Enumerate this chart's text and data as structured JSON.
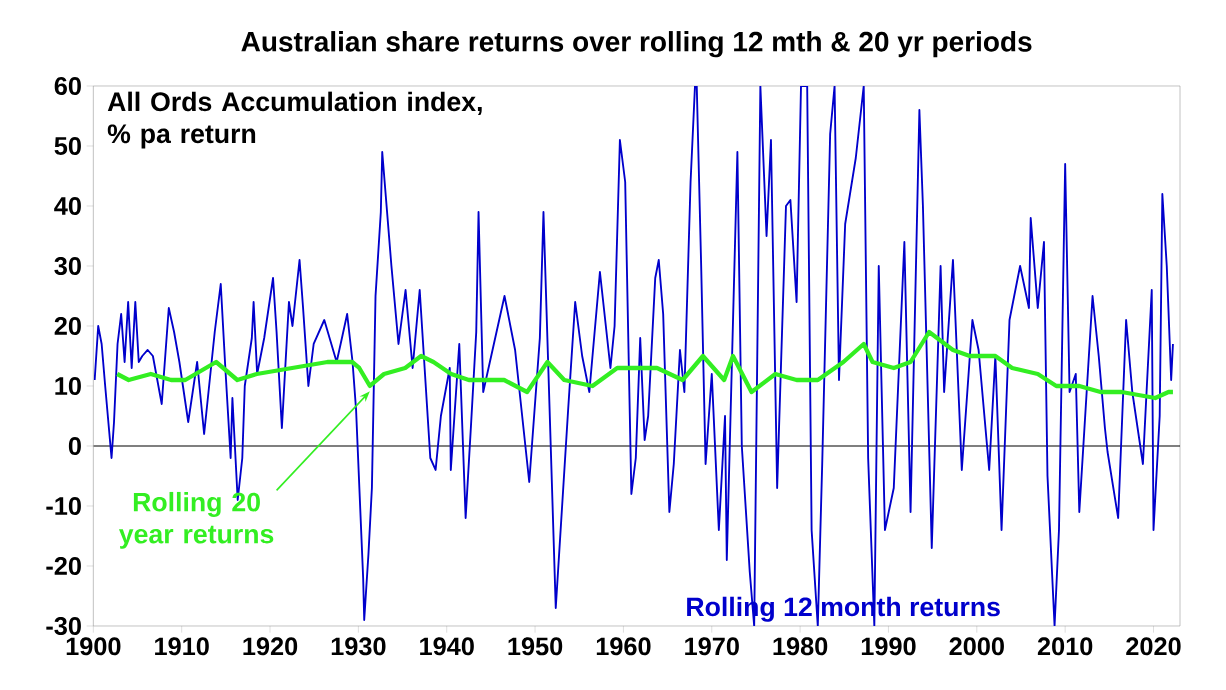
{
  "chart_data": {
    "type": "line",
    "title": "Australian share returns over rolling 12 mth & 20 yr periods",
    "annotations": [
      "All Ords Accumulation index, % pa return"
    ],
    "series": [
      {
        "name": "Rolling 12 month returns",
        "color": "#0000cc",
        "x": [
          1900.15,
          1900.55,
          1900.94,
          1901.34,
          1902.06,
          1902.34,
          1902.74,
          1903.15,
          1903.54,
          1903.94,
          1904.34,
          1904.75,
          1905.14,
          1905.54,
          1906.15,
          1906.74,
          1907.74,
          1908.54,
          1909.14,
          1909.74,
          1910.74,
          1911.75,
          1912.54,
          1913.74,
          1914.42,
          1914.94,
          1915.54,
          1915.74,
          1916.34,
          1916.86,
          1917.14,
          1917.94,
          1918.14,
          1918.54,
          1919.34,
          1920.34,
          1920.74,
          1921.34,
          1922.14,
          1922.54,
          1923.34,
          1923.74,
          1924.34,
          1924.94,
          1926.14,
          1926.94,
          1927.54,
          1928.14,
          1928.73,
          1929.34,
          1929.74,
          1930.54,
          1930.66,
          1931.14,
          1931.53,
          1931.94,
          1932.54,
          1932.7,
          1933.74,
          1934.54,
          1935.34,
          1936.14,
          1936.94,
          1937.54,
          1938.14,
          1938.74,
          1939.34,
          1940.34,
          1940.46,
          1941.42,
          1942.14,
          1942.73,
          1943.34,
          1943.6,
          1944.13,
          1946.54,
          1947.74,
          1949.34,
          1950.54,
          1950.95,
          1952.34,
          1953.74,
          1954.54,
          1955.33,
          1956.14,
          1957.34,
          1958.53,
          1959.0,
          1959.6,
          1960.2,
          1960.9,
          1961.4,
          1961.9,
          1962.4,
          1962.8,
          1963.6,
          1964.0,
          1964.5,
          1965.2,
          1965.7,
          1966.4,
          1966.9,
          1967.6,
          1968.1,
          1968.3,
          1968.8,
          1969.3,
          1970.0,
          1970.8,
          1971.5,
          1971.7,
          1972.9,
          1973.4,
          1974.3,
          1974.8,
          1975.5,
          1976.2,
          1976.7,
          1977.4,
          1978.4,
          1978.9,
          1979.6,
          1980.1,
          1980.8,
          1981.3,
          1982.0,
          1982.5,
          1983.4,
          1983.9,
          1984.4,
          1985.1,
          1986.3,
          1987.2,
          1987.7,
          1988.4,
          1988.9,
          1989.6,
          1990.6,
          1991.8,
          1992.5,
          1993.5,
          1993.9,
          1994.9,
          1995.9,
          1996.3,
          1997.3,
          1998.3,
          1999.5,
          2000.2,
          2001.4,
          2002.1,
          2002.8,
          2003.7,
          2004.9,
          2005.9,
          2006.1,
          2006.9,
          2007.6,
          2008.0,
          2008.8,
          2009.3,
          2010.0,
          2010.5,
          2011.2,
          2011.6,
          2013.1,
          2013.8,
          2014.5,
          2014.8,
          2016.0,
          2016.9,
          2017.6,
          2018.8,
          2019.8,
          2020.0,
          2020.7,
          2021.0,
          2021.5,
          2022.0,
          2022.2
        ],
        "values": [
          11,
          20,
          17,
          10,
          -2,
          4,
          17,
          22,
          14,
          24,
          13,
          24,
          14,
          15,
          16,
          15,
          7,
          23,
          19,
          14,
          4,
          14,
          2,
          19,
          27,
          13,
          -2,
          8,
          -9,
          -2,
          10,
          18,
          24,
          12,
          18,
          28,
          19,
          3,
          24,
          20,
          31,
          23,
          10,
          17,
          21,
          17,
          14,
          18,
          22,
          14,
          6,
          -22,
          -29,
          -18,
          -7,
          25,
          39,
          49,
          30,
          17,
          26,
          13,
          26,
          12,
          -2,
          -4,
          5,
          13,
          -4,
          17,
          -12,
          3,
          19,
          39,
          9,
          25,
          16,
          -6,
          18,
          39,
          -27,
          6,
          24,
          15,
          9,
          29,
          13,
          20,
          51,
          44,
          -8,
          -2,
          18,
          1,
          5,
          28,
          31,
          22,
          -11,
          -3,
          16,
          9,
          44,
          60,
          60,
          30,
          -3,
          12,
          -14,
          5,
          -19,
          49,
          0,
          -21,
          -30,
          60,
          35,
          51,
          -7,
          40,
          41,
          24,
          60,
          60,
          -14,
          -30,
          -3,
          52,
          60,
          11,
          37,
          48,
          60,
          -2,
          -30,
          30,
          -14,
          -7,
          34,
          -11,
          56,
          40,
          -17,
          30,
          9,
          31,
          -4,
          21,
          16,
          -4,
          15,
          -14,
          21,
          30,
          23,
          38,
          23,
          34,
          -5,
          -30,
          -14,
          47,
          9,
          12,
          -11,
          25,
          15,
          3,
          -1,
          -12,
          21,
          9,
          -3,
          26,
          -14,
          5,
          42,
          30,
          11,
          17
        ]
      },
      {
        "name": "Rolling 20 year returns",
        "color": "#33ee22",
        "x": [
          1902.7,
          1904.0,
          1906.5,
          1908.8,
          1910.4,
          1913.9,
          1916.3,
          1918.5,
          1922.5,
          1926.5,
          1929.3,
          1930.1,
          1931.3,
          1932.9,
          1935.3,
          1937.1,
          1938.5,
          1940.5,
          1942.5,
          1946.5,
          1949.1,
          1951.4,
          1953.3,
          1956.5,
          1959.3,
          1961.2,
          1963.8,
          1966.7,
          1969.0,
          1971.4,
          1972.4,
          1974.5,
          1977.2,
          1979.6,
          1982.0,
          1984.9,
          1987.2,
          1988.2,
          1990.6,
          1992.5,
          1994.6,
          1997.3,
          1999.2,
          2002.1,
          2004.0,
          2006.9,
          2009.0,
          2011.6,
          2014.0,
          2016.4,
          2020.2,
          2021.7,
          2022.2
        ],
        "values": [
          12,
          11,
          12,
          11,
          11,
          14,
          11,
          12,
          13,
          14,
          14,
          13,
          10,
          12,
          13,
          15,
          14,
          12,
          11,
          11,
          9,
          14,
          11,
          10,
          13,
          13,
          13,
          11,
          15,
          11,
          15,
          9,
          12,
          11,
          11,
          14,
          17,
          14,
          13,
          14,
          19,
          16,
          15,
          15,
          13,
          12,
          10,
          10,
          9,
          9,
          8,
          9,
          9
        ]
      }
    ],
    "xlim": [
      1900,
      2023
    ],
    "xticks": [
      1900,
      1910,
      1920,
      1930,
      1940,
      1950,
      1960,
      1970,
      1980,
      1990,
      2000,
      2010,
      2020
    ],
    "ylim": [
      -30,
      60
    ],
    "yticks": [
      -30,
      -20,
      -10,
      0,
      10,
      20,
      30,
      40,
      50,
      60
    ],
    "ref_lines": [
      {
        "axis": "y",
        "value": 0,
        "color": "#000000"
      }
    ],
    "legend": false,
    "grid": false
  }
}
